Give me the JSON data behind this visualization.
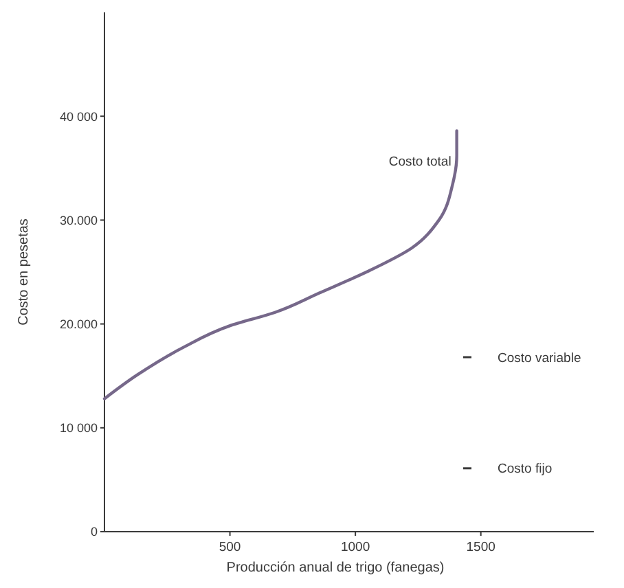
{
  "chart_data": {
    "type": "line",
    "xlabel": "Producción anual de trigo (fanegas)",
    "ylabel": "Costo en pesetas",
    "x": [
      0,
      131,
      311,
      497,
      678,
      858,
      1044,
      1224,
      1333,
      1388,
      1404,
      1404
    ],
    "series": [
      {
        "color": "#76688a",
        "values": [
          12800,
          15100,
          17700,
          19800,
          21100,
          23000,
          25000,
          27300,
          30000,
          33500,
          36200,
          38600
        ]
      }
    ],
    "xlim": [
      0,
      1950
    ],
    "ylim": [
      0,
      50000
    ],
    "xticks": [
      500,
      1000,
      1500
    ],
    "yticks": [
      0,
      {
        "value": 10000,
        "label": "10 000"
      },
      {
        "value": 20000,
        "label": "20.000"
      },
      {
        "value": 30000,
        "label": "30.000"
      },
      {
        "value": 40000,
        "label": "40 000"
      }
    ],
    "annotations": [
      {
        "text": "Costo total",
        "x": 1404,
        "y": 35000
      },
      "Costo variable",
      "Costo fijo"
    ],
    "grid": false,
    "marker": "none",
    "line_style": "solid"
  }
}
